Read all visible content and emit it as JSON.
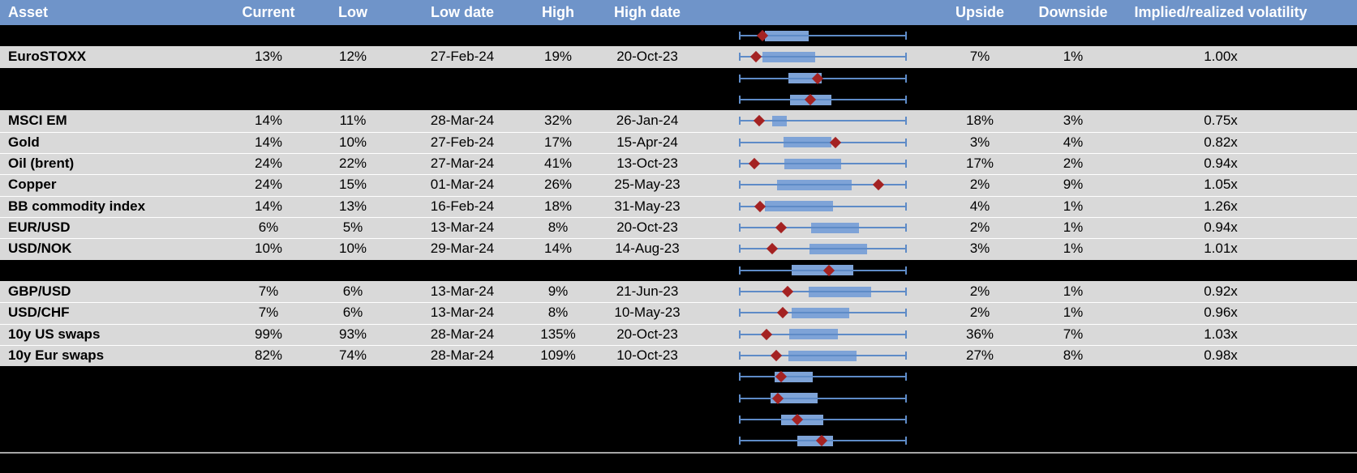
{
  "table": {
    "columns": [
      {
        "key": "asset",
        "label": "Asset"
      },
      {
        "key": "current",
        "label": "Current"
      },
      {
        "key": "low",
        "label": "Low"
      },
      {
        "key": "low_date",
        "label": "Low date"
      },
      {
        "key": "high",
        "label": "High"
      },
      {
        "key": "high_date",
        "label": "High date"
      },
      {
        "key": "plot",
        "label": ""
      },
      {
        "key": "upside",
        "label": "Upside"
      },
      {
        "key": "downside",
        "label": "Downside"
      },
      {
        "key": "vol",
        "label": "Implied/realized volatility"
      }
    ],
    "rows": [
      {
        "type": "hidden"
      },
      {
        "type": "data",
        "asset": "EuroSTOXX",
        "current": "13%",
        "low": "12%",
        "low_date": "27-Feb-24",
        "high": "19%",
        "high_date": "20-Oct-23",
        "upside": "7%",
        "downside": "1%",
        "vol": "1.00x"
      },
      {
        "type": "hidden"
      },
      {
        "type": "hidden"
      },
      {
        "type": "data",
        "asset": "MSCI EM",
        "current": "14%",
        "low": "11%",
        "low_date": "28-Mar-24",
        "high": "32%",
        "high_date": "26-Jan-24",
        "upside": "18%",
        "downside": "3%",
        "vol": "0.75x"
      },
      {
        "type": "data",
        "asset": "Gold",
        "current": "14%",
        "low": "10%",
        "low_date": "27-Feb-24",
        "high": "17%",
        "high_date": "15-Apr-24",
        "upside": "3%",
        "downside": "4%",
        "vol": "0.82x"
      },
      {
        "type": "data",
        "asset": "Oil (brent)",
        "current": "24%",
        "low": "22%",
        "low_date": "27-Mar-24",
        "high": "41%",
        "high_date": "13-Oct-23",
        "upside": "17%",
        "downside": "2%",
        "vol": "0.94x"
      },
      {
        "type": "data",
        "asset": "Copper",
        "current": "24%",
        "low": "15%",
        "low_date": "01-Mar-24",
        "high": "26%",
        "high_date": "25-May-23",
        "upside": "2%",
        "downside": "9%",
        "vol": "1.05x"
      },
      {
        "type": "data",
        "asset": "BB commodity index",
        "current": "14%",
        "low": "13%",
        "low_date": "16-Feb-24",
        "high": "18%",
        "high_date": "31-May-23",
        "upside": "4%",
        "downside": "1%",
        "vol": "1.26x"
      },
      {
        "type": "data",
        "asset": "EUR/USD",
        "current": "6%",
        "low": "5%",
        "low_date": "13-Mar-24",
        "high": "8%",
        "high_date": "20-Oct-23",
        "upside": "2%",
        "downside": "1%",
        "vol": "0.94x"
      },
      {
        "type": "data",
        "asset": "USD/NOK",
        "current": "10%",
        "low": "10%",
        "low_date": "29-Mar-24",
        "high": "14%",
        "high_date": "14-Aug-23",
        "upside": "3%",
        "downside": "1%",
        "vol": "1.01x"
      },
      {
        "type": "hidden"
      },
      {
        "type": "data",
        "asset": "GBP/USD",
        "current": "7%",
        "low": "6%",
        "low_date": "13-Mar-24",
        "high": "9%",
        "high_date": "21-Jun-23",
        "upside": "2%",
        "downside": "1%",
        "vol": "0.92x"
      },
      {
        "type": "data",
        "asset": "USD/CHF",
        "current": "7%",
        "low": "6%",
        "low_date": "13-Mar-24",
        "high": "8%",
        "high_date": "10-May-23",
        "upside": "2%",
        "downside": "1%",
        "vol": "0.96x"
      },
      {
        "type": "data",
        "asset": "10y US swaps",
        "current": "99%",
        "low": "93%",
        "low_date": "28-Mar-24",
        "high": "135%",
        "high_date": "20-Oct-23",
        "upside": "36%",
        "downside": "7%",
        "vol": "1.03x"
      },
      {
        "type": "data",
        "asset": "10y Eur swaps",
        "current": "82%",
        "low": "74%",
        "low_date": "28-Mar-24",
        "high": "109%",
        "high_date": "10-Oct-23",
        "upside": "27%",
        "downside": "8%",
        "vol": "0.98x"
      },
      {
        "type": "hidden"
      },
      {
        "type": "hidden"
      },
      {
        "type": "hidden"
      },
      {
        "type": "hidden"
      },
      {
        "type": "footer"
      }
    ]
  },
  "chart_data": {
    "type": "boxplot",
    "orientation": "horizontal",
    "axis_visible": false,
    "x_extent_normalized": [
      0,
      1
    ],
    "whisker_meaning": "low-to-high range per asset row; diamond marks current level; box marks mid range",
    "rows": [
      {
        "label": "",
        "diamond": 0.135,
        "box": [
          0.15,
          0.415
        ]
      },
      {
        "label": "EuroSTOXX",
        "diamond": 0.098,
        "box": [
          0.137,
          0.455
        ]
      },
      {
        "label": "",
        "diamond": 0.47,
        "box": [
          0.293,
          0.495
        ]
      },
      {
        "label": "",
        "diamond": 0.422,
        "box": [
          0.304,
          0.55
        ]
      },
      {
        "label": "MSCI EM",
        "diamond": 0.115,
        "box": [
          0.195,
          0.285
        ]
      },
      {
        "label": "Gold",
        "diamond": 0.578,
        "box": [
          0.265,
          0.549
        ]
      },
      {
        "label": "Oil (brent)",
        "diamond": 0.088,
        "box": [
          0.268,
          0.611
        ]
      },
      {
        "label": "Copper",
        "diamond": 0.832,
        "box": [
          0.224,
          0.672
        ]
      },
      {
        "label": "BB commodity index",
        "diamond": 0.124,
        "box": [
          0.15,
          0.562
        ]
      },
      {
        "label": "EUR/USD",
        "diamond": 0.25,
        "box": [
          0.427,
          0.719
        ]
      },
      {
        "label": "USD/NOK",
        "diamond": 0.195,
        "box": [
          0.42,
          0.766
        ]
      },
      {
        "label": "",
        "diamond": 0.539,
        "box": [
          0.314,
          0.685
        ]
      },
      {
        "label": "GBP/USD",
        "diamond": 0.288,
        "box": [
          0.415,
          0.791
        ]
      },
      {
        "label": "USD/CHF",
        "diamond": 0.26,
        "box": [
          0.314,
          0.66
        ]
      },
      {
        "label": "10y US swaps",
        "diamond": 0.162,
        "box": [
          0.298,
          0.592
        ]
      },
      {
        "label": "10y Eur swaps",
        "diamond": 0.221,
        "box": [
          0.294,
          0.701
        ]
      },
      {
        "label": "",
        "diamond": 0.249,
        "box": [
          0.211,
          0.44
        ]
      },
      {
        "label": "",
        "diamond": 0.23,
        "box": [
          0.186,
          0.466
        ]
      },
      {
        "label": "",
        "diamond": 0.348,
        "box": [
          0.25,
          0.5
        ]
      },
      {
        "label": "",
        "diamond": 0.495,
        "box": [
          0.348,
          0.559
        ]
      },
      {
        "label": "",
        "diamond": null,
        "box": null
      }
    ]
  },
  "colors": {
    "header_bg": "#6f94c9",
    "row_bg": "#d9d9d9",
    "hidden_bg": "#000000",
    "box_fill": "#7ea3d7",
    "whisker": "#5e8bc7",
    "diamond": "#a42222",
    "divider": "#a6a6a6"
  }
}
